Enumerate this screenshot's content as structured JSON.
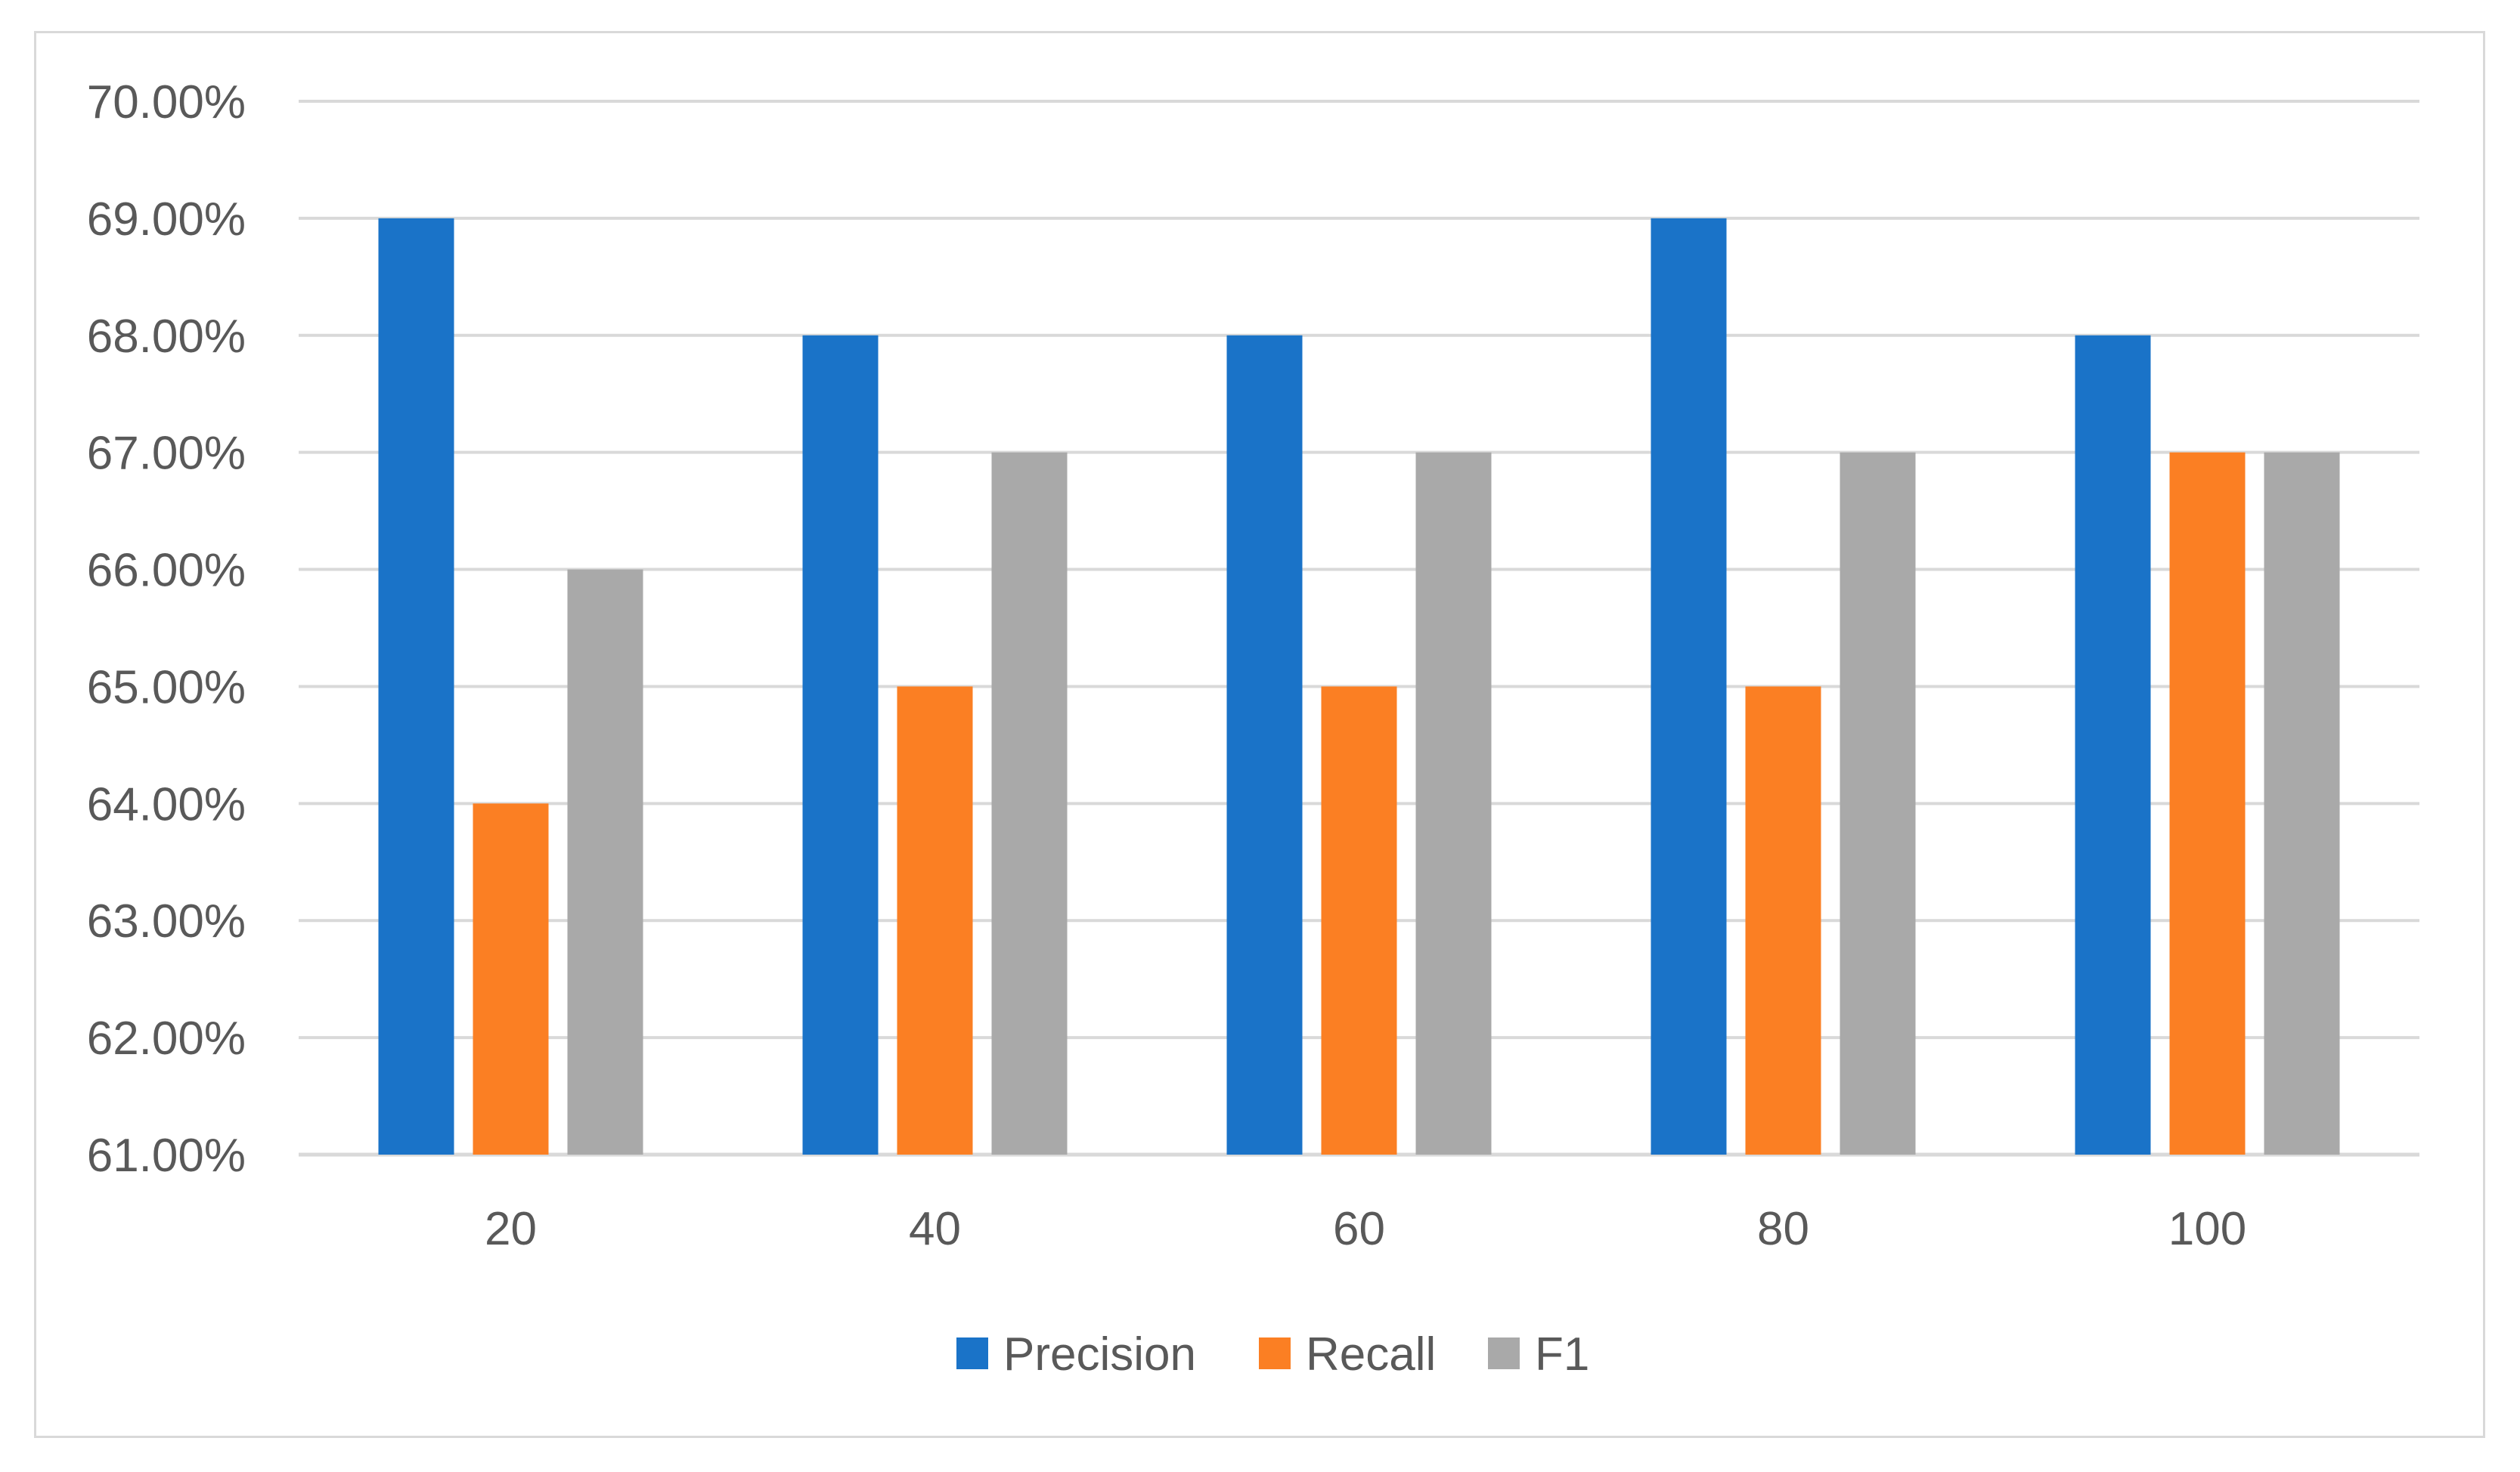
{
  "chart_data": {
    "type": "bar",
    "categories": [
      "20",
      "40",
      "60",
      "80",
      "100"
    ],
    "series": [
      {
        "name": "Precision",
        "values": [
          69,
          68,
          68,
          69,
          68
        ],
        "color": "#1a73c8"
      },
      {
        "name": "Recall",
        "values": [
          64,
          65,
          65,
          65,
          67
        ],
        "color": "#fb7f23"
      },
      {
        "name": "F1",
        "values": [
          66,
          67,
          67,
          67,
          67
        ],
        "color": "#a9a9a9"
      }
    ],
    "y_ticks": [
      "61.00%",
      "62.00%",
      "63.00%",
      "64.00%",
      "65.00%",
      "66.00%",
      "67.00%",
      "68.00%",
      "69.00%",
      "70.00%"
    ],
    "ylim": [
      61,
      70
    ],
    "grid": true,
    "legend_position": "bottom"
  }
}
